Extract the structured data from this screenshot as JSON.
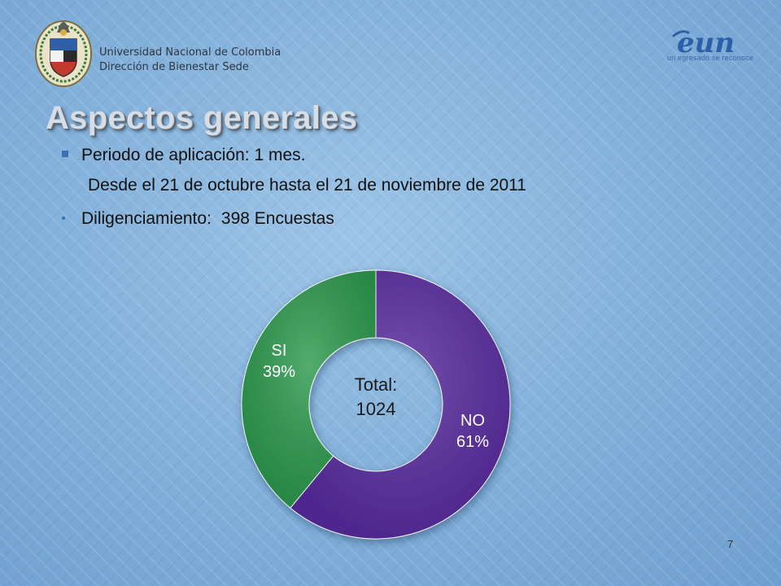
{
  "header": {
    "institution_line1": "Universidad Nacional de Colombia",
    "institution_line2": "Dirección de Bienestar Sede",
    "logo_text": "eun",
    "logo_tagline": "un egresado se reconoce",
    "seal_icon": "university-seal-icon"
  },
  "slide": {
    "title": "Aspectos generales",
    "bullets": [
      {
        "label": "Periodo de aplicación: 1 mes."
      },
      {
        "label": "Desde el 21 de octubre hasta el 21 de noviembre de 2011"
      },
      {
        "label": "Diligenciamiento:",
        "value": "398 Encuestas"
      }
    ],
    "page_number": "7"
  },
  "colors": {
    "si": "#2e9a4e",
    "no": "#5a2da0",
    "accent": "#3d6fb5"
  },
  "chart_data": {
    "type": "pie",
    "variant": "donut",
    "categories": [
      "NO",
      "SI"
    ],
    "values": [
      61,
      39
    ],
    "data_labels": [
      "NO\n61%",
      "SI\n39%"
    ],
    "center_label": "Total:\n1024",
    "colors": [
      "#5a2da0",
      "#2e9a4e"
    ]
  }
}
